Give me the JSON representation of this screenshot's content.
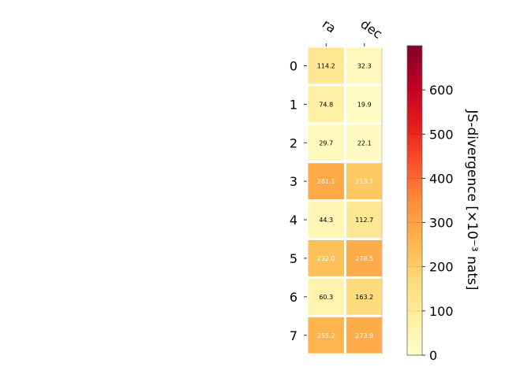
{
  "chart_data": {
    "type": "heatmap",
    "columns": [
      "ra",
      "dec"
    ],
    "rows": [
      "0",
      "1",
      "2",
      "3",
      "4",
      "5",
      "6",
      "7"
    ],
    "values": [
      [
        114.2,
        32.3
      ],
      [
        74.8,
        19.9
      ],
      [
        29.7,
        22.1
      ],
      [
        281.1,
        213.7
      ],
      [
        44.3,
        112.7
      ],
      [
        232.0,
        278.5
      ],
      [
        60.3,
        163.2
      ],
      [
        255.2,
        273.9
      ]
    ],
    "value_labels": [
      [
        "114.2",
        "32.3"
      ],
      [
        "74.8",
        "19.9"
      ],
      [
        "29.7",
        "22.1"
      ],
      [
        "281.1",
        "213.7"
      ],
      [
        "44.3",
        "112.7"
      ],
      [
        "232.0",
        "278.5"
      ],
      [
        "60.3",
        "163.2"
      ],
      [
        "255.2",
        "273.9"
      ]
    ],
    "colorbar": {
      "label": "JS-divergence [×10⁻³ nats]",
      "range": [
        0,
        700
      ],
      "ticks": [
        0,
        100,
        200,
        300,
        400,
        500,
        600
      ],
      "tick_labels": [
        "0",
        "100",
        "200",
        "300",
        "400",
        "500",
        "600"
      ],
      "colormap": "YlOrRd"
    },
    "colors": {
      "cell_border": "#ffffff",
      "dark_text": "#000000",
      "light_text": "#ffffff"
    }
  }
}
